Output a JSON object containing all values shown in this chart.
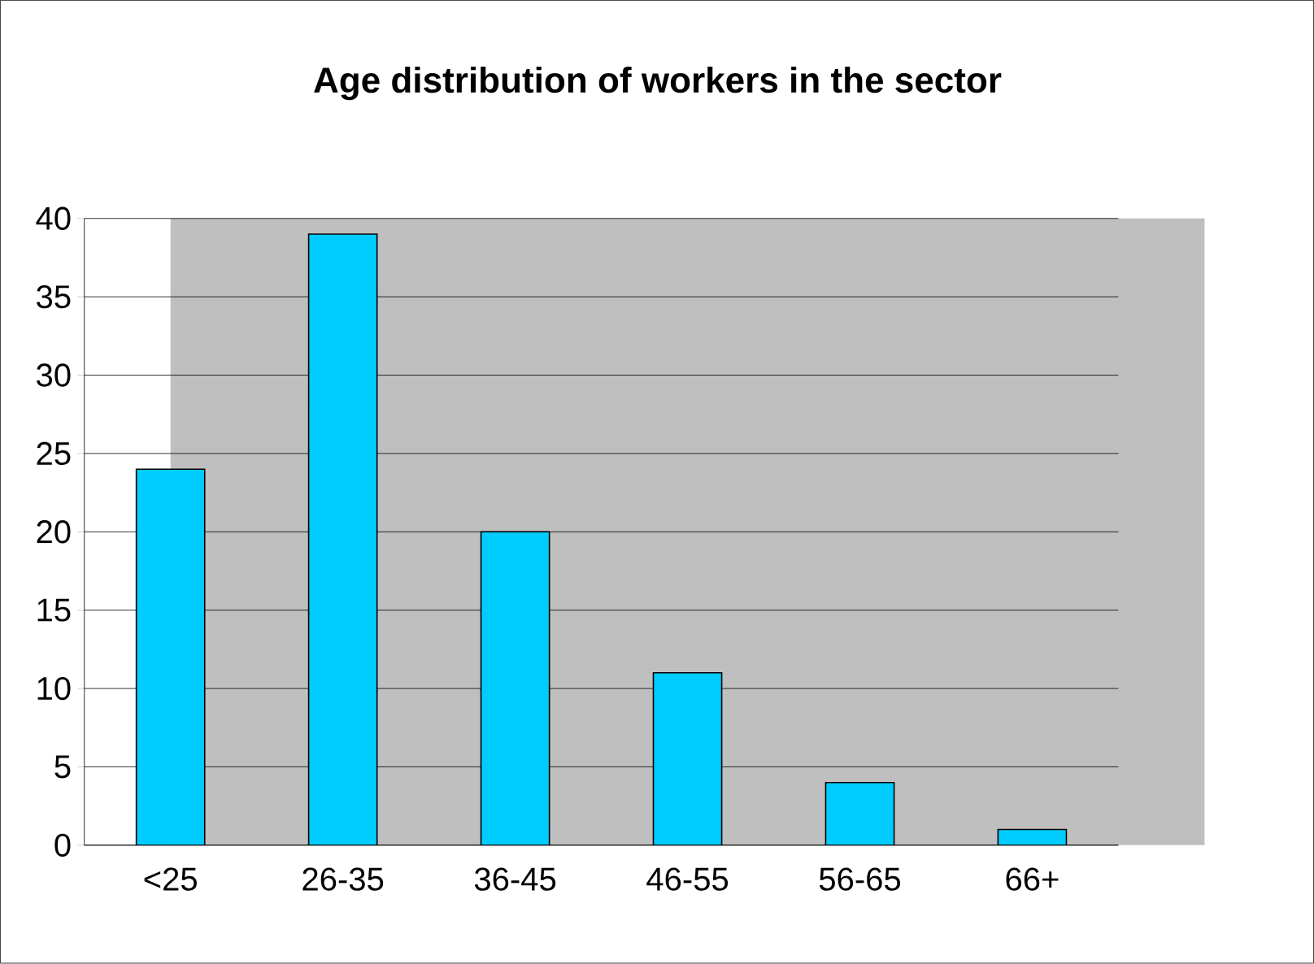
{
  "chart_data": {
    "type": "bar",
    "title": "Age distribution of workers in the sector",
    "categories": [
      "<25",
      "26-35",
      "36-45",
      "46-55",
      "56-65",
      "66+"
    ],
    "values": [
      24,
      39,
      20,
      11,
      4,
      1
    ],
    "color": "#00ccff",
    "ylim": [
      0,
      40
    ],
    "yticks": [
      0,
      5,
      10,
      15,
      20,
      25,
      30,
      35,
      40
    ],
    "grid": "y"
  }
}
